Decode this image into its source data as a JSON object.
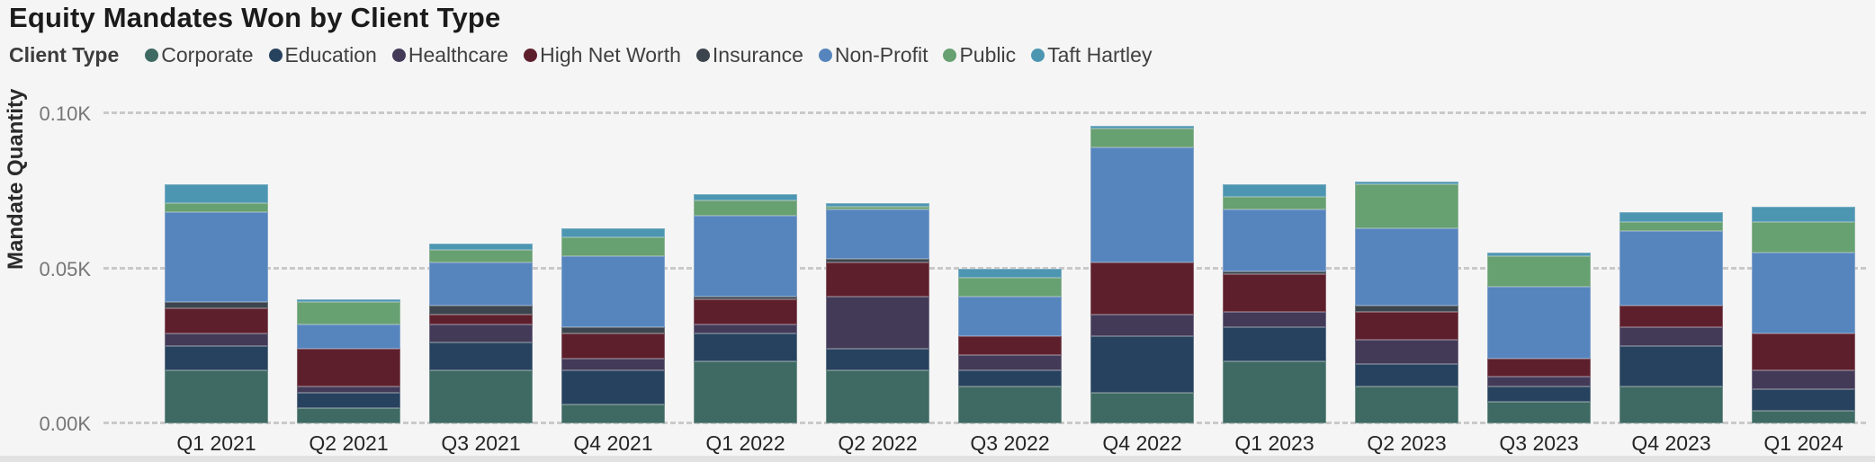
{
  "title": "Equity Mandates Won by Client Type",
  "legend": {
    "label": "Client Type",
    "position": "top"
  },
  "y_axis": {
    "title": "Mandate Quantity",
    "tick_labels": [
      "0.00K",
      "0.05K",
      "0.10K"
    ]
  },
  "chart_data": {
    "type": "bar",
    "stacked": true,
    "title": "Equity Mandates Won by Client Type",
    "xlabel": "",
    "ylabel": "Mandate Quantity",
    "ylim": [
      0,
      100
    ],
    "grid": "horizontal-dashed",
    "legend_position": "top",
    "y_ticks": [
      {
        "value": 0,
        "label": "0.00K"
      },
      {
        "value": 50,
        "label": "0.05K"
      },
      {
        "value": 100,
        "label": "0.10K"
      }
    ],
    "categories": [
      "Q1 2021",
      "Q2 2021",
      "Q3 2021",
      "Q4 2021",
      "Q1 2022",
      "Q2 2022",
      "Q3 2022",
      "Q4 2022",
      "Q1 2023",
      "Q2 2023",
      "Q3 2023",
      "Q4 2023",
      "Q1 2024"
    ],
    "series": [
      {
        "name": "Corporate",
        "color": "#3E6A63",
        "values": [
          17,
          5,
          17,
          6,
          20,
          17,
          12,
          10,
          20,
          12,
          7,
          12,
          4
        ]
      },
      {
        "name": "Education",
        "color": "#27425E",
        "values": [
          8,
          5,
          9,
          11,
          9,
          7,
          5,
          18,
          11,
          7,
          5,
          13,
          7
        ]
      },
      {
        "name": "Healthcare",
        "color": "#433A58",
        "values": [
          4,
          2,
          6,
          4,
          3,
          17,
          5,
          7,
          5,
          8,
          3,
          6,
          6
        ]
      },
      {
        "name": "High Net Worth",
        "color": "#5E1F2D",
        "values": [
          8,
          12,
          3,
          8,
          8,
          11,
          6,
          17,
          12,
          9,
          6,
          7,
          12
        ]
      },
      {
        "name": "Insurance",
        "color": "#3C444D",
        "values": [
          2,
          0,
          3,
          2,
          1,
          1,
          0,
          0,
          1,
          2,
          0,
          0,
          0
        ]
      },
      {
        "name": "Non-Profit",
        "color": "#5685BE",
        "values": [
          29,
          8,
          14,
          23,
          26,
          16,
          13,
          37,
          20,
          25,
          23,
          24,
          26
        ]
      },
      {
        "name": "Public",
        "color": "#67A071",
        "values": [
          3,
          7,
          4,
          6,
          5,
          1,
          6,
          6,
          4,
          14,
          10,
          3,
          10
        ]
      },
      {
        "name": "Taft Hartley",
        "color": "#4C96B2",
        "values": [
          6,
          1,
          2,
          3,
          2,
          1,
          3,
          1,
          4,
          1,
          1,
          3,
          5
        ]
      }
    ]
  }
}
